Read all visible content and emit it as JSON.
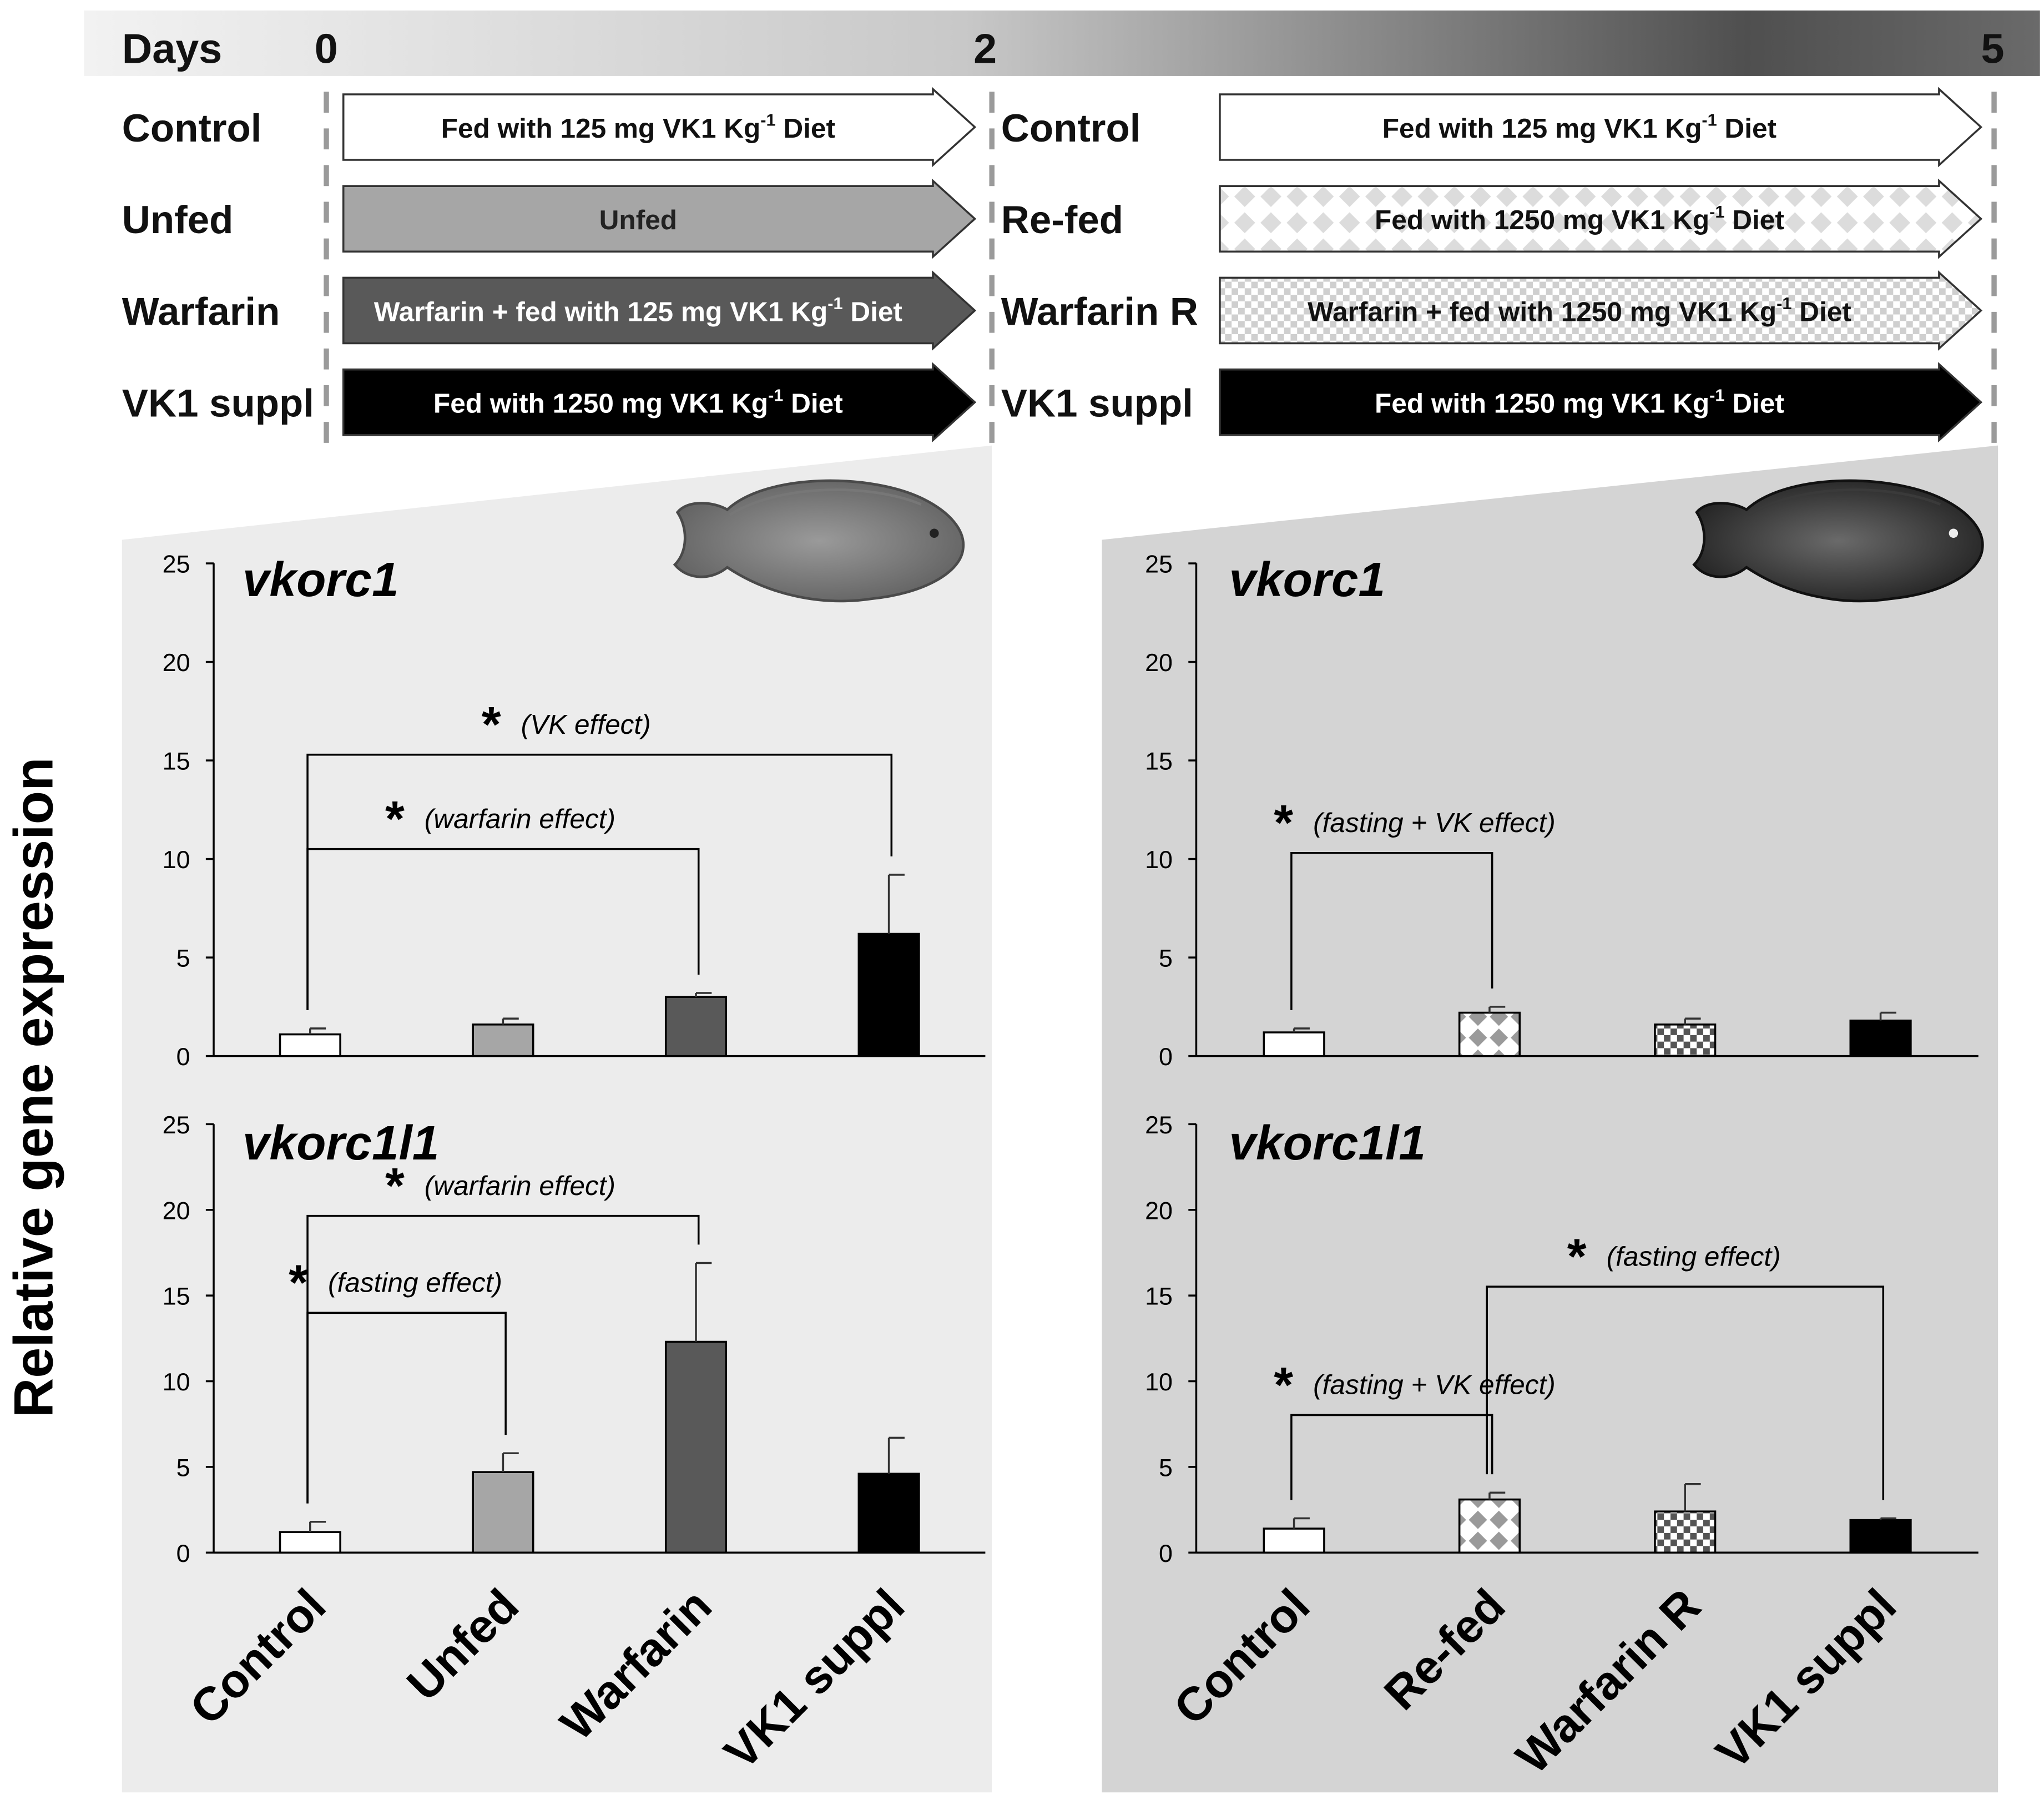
{
  "timeline": {
    "days_label": "Days",
    "ticks": [
      "0",
      "2",
      "5"
    ]
  },
  "protocol": {
    "phase1": [
      {
        "group": "Control",
        "text": "Fed with 125 mg VK1 Kg",
        "sup": "-1",
        "tail": " Diet",
        "style": "white"
      },
      {
        "group": "Unfed",
        "text": "Unfed",
        "sup": "",
        "tail": "",
        "style": "light-gray"
      },
      {
        "group": "Warfarin",
        "text": "Warfarin + fed with 125 mg VK1 Kg",
        "sup": "-1",
        "tail": " Diet",
        "style": "dark-gray"
      },
      {
        "group": "VK1 suppl",
        "text": "Fed with 1250 mg VK1 Kg",
        "sup": "-1",
        "tail": " Diet",
        "style": "black"
      }
    ],
    "phase2": [
      {
        "group": "Control",
        "text": "Fed with 125 mg VK1 Kg",
        "sup": "-1",
        "tail": " Diet",
        "style": "white"
      },
      {
        "group": "Re-fed",
        "text": "Fed with 1250 mg VK1 Kg",
        "sup": "-1",
        "tail": " Diet",
        "style": "diamond-pattern"
      },
      {
        "group": "Warfarin R",
        "text": "Warfarin + fed with 1250 mg VK1 Kg",
        "sup": "-1",
        "tail": " Diet",
        "style": "checker-pattern"
      },
      {
        "group": "VK1 suppl",
        "text": "Fed with 1250 mg VK1 Kg",
        "sup": "-1",
        "tail": " Diet",
        "style": "black"
      }
    ]
  },
  "ylabel": "Relative gene expression",
  "colors": {
    "white": "#ffffff",
    "light-gray": "#a6a6a6",
    "dark-gray": "#595959",
    "black": "#000000",
    "panel_left": "#ececec",
    "panel_right": "#d4d4d4"
  },
  "chart_data": [
    {
      "type": "bar",
      "title": "vkorc1",
      "categories": [
        "Control",
        "Unfed",
        "Warfarin",
        "VK1 suppl"
      ],
      "values": [
        1.1,
        1.6,
        3.0,
        6.2
      ],
      "errors": [
        0.3,
        0.3,
        0.2,
        3.0
      ],
      "fills": [
        "white",
        "light-gray",
        "dark-gray",
        "black"
      ],
      "ylim": [
        0,
        25
      ],
      "yticks": [
        0,
        5,
        10,
        15,
        20,
        25
      ],
      "annotations": [
        {
          "star": "*",
          "label": "(VK effect)",
          "from": 0,
          "to": 3
        },
        {
          "star": "*",
          "label": "(warfarin effect)",
          "from": 0,
          "to": 2
        }
      ]
    },
    {
      "type": "bar",
      "title": "vkorc1l1",
      "categories": [
        "Control",
        "Unfed",
        "Warfarin",
        "VK1 suppl"
      ],
      "values": [
        1.2,
        4.7,
        12.3,
        4.6
      ],
      "errors": [
        0.6,
        1.1,
        4.6,
        2.1
      ],
      "fills": [
        "white",
        "light-gray",
        "dark-gray",
        "black"
      ],
      "ylim": [
        0,
        25
      ],
      "yticks": [
        0,
        5,
        10,
        15,
        20,
        25
      ],
      "annotations": [
        {
          "star": "*",
          "label": "(warfarin effect)",
          "from": 0,
          "to": 2
        },
        {
          "star": "*",
          "label": "(fasting effect)",
          "from": 0,
          "to": 1
        }
      ]
    },
    {
      "type": "bar",
      "title": "vkorc1",
      "categories": [
        "Control",
        "Re-fed",
        "Warfarin R",
        "VK1 suppl"
      ],
      "values": [
        1.2,
        2.2,
        1.6,
        1.8
      ],
      "errors": [
        0.2,
        0.3,
        0.3,
        0.4
      ],
      "fills": [
        "white",
        "diamond-pattern",
        "checker-pattern",
        "black"
      ],
      "ylim": [
        0,
        25
      ],
      "yticks": [
        0,
        5,
        10,
        15,
        20,
        25
      ],
      "annotations": [
        {
          "star": "*",
          "label": "(fasting + VK effect)",
          "from": 0,
          "to": 1
        }
      ]
    },
    {
      "type": "bar",
      "title": "vkorc1l1",
      "categories": [
        "Control",
        "Re-fed",
        "Warfarin R",
        "VK1 suppl"
      ],
      "values": [
        1.4,
        3.1,
        2.4,
        1.9
      ],
      "errors": [
        0.6,
        0.4,
        1.6,
        0.1
      ],
      "fills": [
        "white",
        "diamond-pattern",
        "checker-pattern",
        "black"
      ],
      "ylim": [
        0,
        25
      ],
      "yticks": [
        0,
        5,
        10,
        15,
        20,
        25
      ],
      "annotations": [
        {
          "star": "*",
          "label": "(fasting effect)",
          "from": 1,
          "to": 3
        },
        {
          "star": "*",
          "label": "(fasting + VK effect)",
          "from": 0,
          "to": 1
        }
      ]
    }
  ]
}
